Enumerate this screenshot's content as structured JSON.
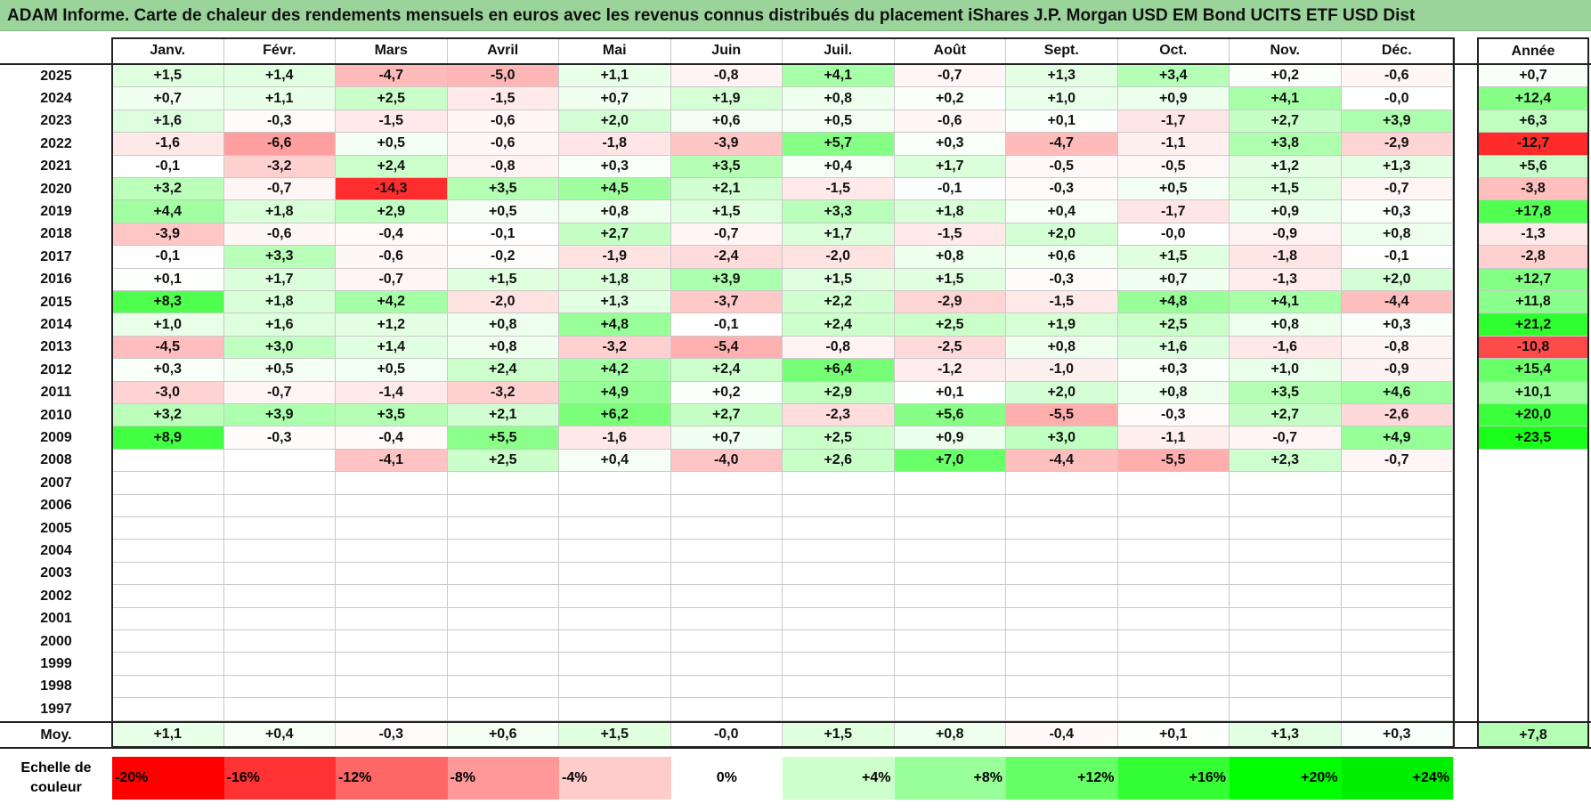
{
  "title": "ADAM Informe. Carte de chaleur des rendements mensuels en euros avec les revenus connus distribués du placement iShares J.P. Morgan USD EM Bond UCITS ETF USD Dist",
  "chart_data": {
    "type": "heatmap",
    "months": [
      "Janv.",
      "Févr.",
      "Mars",
      "Avril",
      "Mai",
      "Juin",
      "Juil.",
      "Août",
      "Sept.",
      "Oct.",
      "Nov.",
      "Déc."
    ],
    "year_column_label": "Année",
    "average_row_label": "Moy.",
    "rows": [
      {
        "year": "2025",
        "values": [
          "+1,5",
          "+1,4",
          "-4,7",
          "-5,0",
          "+1,1",
          "-0,8",
          "+4,1",
          "-0,7",
          "+1,3",
          "+3,4",
          "+0,2",
          "-0,6"
        ],
        "annual": "+0,7"
      },
      {
        "year": "2024",
        "values": [
          "+0,7",
          "+1,1",
          "+2,5",
          "-1,5",
          "+0,7",
          "+1,9",
          "+0,8",
          "+0,2",
          "+1,0",
          "+0,9",
          "+4,1",
          "-0,0"
        ],
        "annual": "+12,4"
      },
      {
        "year": "2023",
        "values": [
          "+1,6",
          "-0,3",
          "-1,5",
          "-0,6",
          "+2,0",
          "+0,6",
          "+0,5",
          "-0,6",
          "+0,1",
          "-1,7",
          "+2,7",
          "+3,9"
        ],
        "annual": "+6,3"
      },
      {
        "year": "2022",
        "values": [
          "-1,6",
          "-6,6",
          "+0,5",
          "-0,6",
          "-1,8",
          "-3,9",
          "+5,7",
          "+0,3",
          "-4,7",
          "-1,1",
          "+3,8",
          "-2,9"
        ],
        "annual": "-12,7"
      },
      {
        "year": "2021",
        "values": [
          "-0,1",
          "-3,2",
          "+2,4",
          "-0,8",
          "+0,3",
          "+3,5",
          "+0,4",
          "+1,7",
          "-0,5",
          "-0,5",
          "+1,2",
          "+1,3"
        ],
        "annual": "+5,6"
      },
      {
        "year": "2020",
        "values": [
          "+3,2",
          "-0,7",
          "-14,3",
          "+3,5",
          "+4,5",
          "+2,1",
          "-1,5",
          "-0,1",
          "-0,3",
          "+0,5",
          "+1,5",
          "-0,7"
        ],
        "annual": "-3,8"
      },
      {
        "year": "2019",
        "values": [
          "+4,4",
          "+1,8",
          "+2,9",
          "+0,5",
          "+0,8",
          "+1,5",
          "+3,3",
          "+1,8",
          "+0,4",
          "-1,7",
          "+0,9",
          "+0,3"
        ],
        "annual": "+17,8"
      },
      {
        "year": "2018",
        "values": [
          "-3,9",
          "-0,6",
          "-0,4",
          "-0,1",
          "+2,7",
          "-0,7",
          "+1,7",
          "-1,5",
          "+2,0",
          "-0,0",
          "-0,9",
          "+0,8"
        ],
        "annual": "-1,3"
      },
      {
        "year": "2017",
        "values": [
          "-0,1",
          "+3,3",
          "-0,6",
          "-0,2",
          "-1,9",
          "-2,4",
          "-2,0",
          "+0,8",
          "+0,6",
          "+1,5",
          "-1,8",
          "-0,1"
        ],
        "annual": "-2,8"
      },
      {
        "year": "2016",
        "values": [
          "+0,1",
          "+1,7",
          "-0,7",
          "+1,5",
          "+1,8",
          "+3,9",
          "+1,5",
          "+1,5",
          "-0,3",
          "+0,7",
          "-1,3",
          "+2,0"
        ],
        "annual": "+12,7"
      },
      {
        "year": "2015",
        "values": [
          "+8,3",
          "+1,8",
          "+4,2",
          "-2,0",
          "+1,3",
          "-3,7",
          "+2,2",
          "-2,9",
          "-1,5",
          "+4,8",
          "+4,1",
          "-4,4"
        ],
        "annual": "+11,8"
      },
      {
        "year": "2014",
        "values": [
          "+1,0",
          "+1,6",
          "+1,2",
          "+0,8",
          "+4,8",
          "-0,1",
          "+2,4",
          "+2,5",
          "+1,9",
          "+2,5",
          "+0,8",
          "+0,3"
        ],
        "annual": "+21,2"
      },
      {
        "year": "2013",
        "values": [
          "-4,5",
          "+3,0",
          "+1,4",
          "+0,8",
          "-3,2",
          "-5,4",
          "-0,8",
          "-2,5",
          "+0,8",
          "+1,6",
          "-1,6",
          "-0,8"
        ],
        "annual": "-10,8"
      },
      {
        "year": "2012",
        "values": [
          "+0,3",
          "+0,5",
          "+0,5",
          "+2,4",
          "+4,2",
          "+2,4",
          "+6,4",
          "-1,2",
          "-1,0",
          "+0,3",
          "+1,0",
          "-0,9"
        ],
        "annual": "+15,4"
      },
      {
        "year": "2011",
        "values": [
          "-3,0",
          "-0,7",
          "-1,4",
          "-3,2",
          "+4,9",
          "+0,2",
          "+2,9",
          "+0,1",
          "+2,0",
          "+0,8",
          "+3,5",
          "+4,6"
        ],
        "annual": "+10,1"
      },
      {
        "year": "2010",
        "values": [
          "+3,2",
          "+3,9",
          "+3,5",
          "+2,1",
          "+6,2",
          "+2,7",
          "-2,3",
          "+5,6",
          "-5,5",
          "-0,3",
          "+2,7",
          "-2,6"
        ],
        "annual": "+20,0"
      },
      {
        "year": "2009",
        "values": [
          "+8,9",
          "-0,3",
          "-0,4",
          "+5,5",
          "-1,6",
          "+0,7",
          "+2,5",
          "+0,9",
          "+3,0",
          "-1,1",
          "-0,7",
          "+4,9"
        ],
        "annual": "+23,5"
      },
      {
        "year": "2008",
        "values": [
          "",
          "",
          "-4,1",
          "+2,5",
          "+0,4",
          "-4,0",
          "+2,6",
          "+7,0",
          "-4,4",
          "-5,5",
          "+2,3",
          "-0,7"
        ],
        "annual": ""
      },
      {
        "year": "2007",
        "values": [
          "",
          "",
          "",
          "",
          "",
          "",
          "",
          "",
          "",
          "",
          "",
          ""
        ],
        "annual": ""
      },
      {
        "year": "2006",
        "values": [
          "",
          "",
          "",
          "",
          "",
          "",
          "",
          "",
          "",
          "",
          "",
          ""
        ],
        "annual": ""
      },
      {
        "year": "2005",
        "values": [
          "",
          "",
          "",
          "",
          "",
          "",
          "",
          "",
          "",
          "",
          "",
          ""
        ],
        "annual": ""
      },
      {
        "year": "2004",
        "values": [
          "",
          "",
          "",
          "",
          "",
          "",
          "",
          "",
          "",
          "",
          "",
          ""
        ],
        "annual": ""
      },
      {
        "year": "2003",
        "values": [
          "",
          "",
          "",
          "",
          "",
          "",
          "",
          "",
          "",
          "",
          "",
          ""
        ],
        "annual": ""
      },
      {
        "year": "2002",
        "values": [
          "",
          "",
          "",
          "",
          "",
          "",
          "",
          "",
          "",
          "",
          "",
          ""
        ],
        "annual": ""
      },
      {
        "year": "2001",
        "values": [
          "",
          "",
          "",
          "",
          "",
          "",
          "",
          "",
          "",
          "",
          "",
          ""
        ],
        "annual": ""
      },
      {
        "year": "2000",
        "values": [
          "",
          "",
          "",
          "",
          "",
          "",
          "",
          "",
          "",
          "",
          "",
          ""
        ],
        "annual": ""
      },
      {
        "year": "1999",
        "values": [
          "",
          "",
          "",
          "",
          "",
          "",
          "",
          "",
          "",
          "",
          "",
          ""
        ],
        "annual": ""
      },
      {
        "year": "1998",
        "values": [
          "",
          "",
          "",
          "",
          "",
          "",
          "",
          "",
          "",
          "",
          "",
          ""
        ],
        "annual": ""
      },
      {
        "year": "1997",
        "values": [
          "",
          "",
          "",
          "",
          "",
          "",
          "",
          "",
          "",
          "",
          "",
          ""
        ],
        "annual": ""
      }
    ],
    "averages": {
      "values": [
        "+1,1",
        "+0,4",
        "-0,3",
        "+0,6",
        "+1,5",
        "-0,0",
        "+1,5",
        "+0,8",
        "-0,4",
        "+0,1",
        "+1,3",
        "+0,3"
      ],
      "annual": "+7,8"
    },
    "color_scale": {
      "label": "Echelle de couleur",
      "stops": [
        {
          "label": "-20%",
          "color": "#ff0000"
        },
        {
          "label": "-16%",
          "color": "#ff3333"
        },
        {
          "label": "-12%",
          "color": "#ff6666"
        },
        {
          "label": "-8%",
          "color": "#ff9999"
        },
        {
          "label": "-4%",
          "color": "#ffcccc"
        },
        {
          "label": "0%",
          "color": "#ffffff"
        },
        {
          "label": "+4%",
          "color": "#ccffcc"
        },
        {
          "label": "+8%",
          "color": "#99ff99"
        },
        {
          "label": "+12%",
          "color": "#66ff66"
        },
        {
          "label": "+16%",
          "color": "#33ff33"
        },
        {
          "label": "+20%",
          "color": "#00ff00"
        },
        {
          "label": "+24%",
          "color": "#00ee00"
        }
      ]
    }
  }
}
